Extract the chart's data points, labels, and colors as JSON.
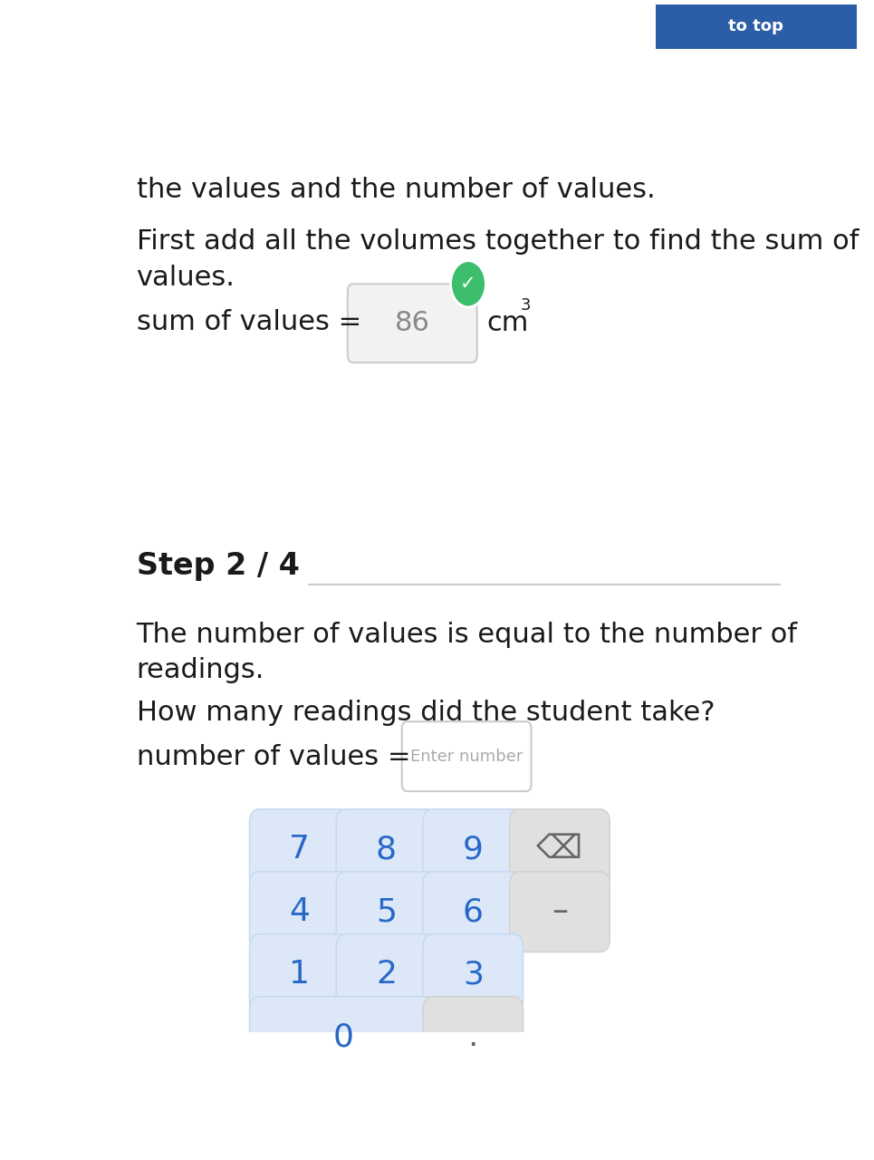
{
  "bg_color": "#ffffff",
  "text_color": "#1a1a1a",
  "line1": "the values and the number of values.",
  "line2": "First add all the volumes together to find the sum of",
  "line3": "values.",
  "sum_label": "sum of values =",
  "sum_value": "86",
  "step_label": "Step 2 / 4",
  "step_line_color": "#cccccc",
  "desc_line1": "The number of values is equal to the number of",
  "desc_line2": "readings.",
  "question": "How many readings did the student take?",
  "nv_label": "number of values =",
  "nv_placeholder": "Enter number",
  "input_box_color": "#f2f2f2",
  "input_border_color": "#cccccc",
  "placeholder_color": "#aaaaaa",
  "checkmark_color": "#3dbe6c",
  "button_color": "#dce8f8",
  "button_text_color": "#2968c8",
  "button_border_color": "#c5d8f0",
  "special_btn_color": "#e0e0e0",
  "special_btn_border": "#d0d0d0",
  "special_btn_text": "#666666",
  "toptag_color": "#2b5ea7",
  "toptag_text": "to top",
  "left_bar_color": "#2b5ea7",
  "font_size_main": 22,
  "font_size_step": 24,
  "font_size_btn": 26,
  "buttons": [
    {
      "label": "7",
      "col": 0,
      "row": 0,
      "wide": false,
      "special": false
    },
    {
      "label": "8",
      "col": 1,
      "row": 0,
      "wide": false,
      "special": false
    },
    {
      "label": "9",
      "col": 2,
      "row": 0,
      "wide": false,
      "special": false
    },
    {
      "label": "⌫",
      "col": 3,
      "row": 0,
      "wide": false,
      "special": true
    },
    {
      "label": "4",
      "col": 0,
      "row": 1,
      "wide": false,
      "special": false
    },
    {
      "label": "5",
      "col": 1,
      "row": 1,
      "wide": false,
      "special": false
    },
    {
      "label": "6",
      "col": 2,
      "row": 1,
      "wide": false,
      "special": false
    },
    {
      "label": "–",
      "col": 3,
      "row": 1,
      "wide": false,
      "special": true
    },
    {
      "label": "1",
      "col": 0,
      "row": 2,
      "wide": false,
      "special": false
    },
    {
      "label": "2",
      "col": 1,
      "row": 2,
      "wide": false,
      "special": false
    },
    {
      "label": "3",
      "col": 2,
      "row": 2,
      "wide": false,
      "special": false
    },
    {
      "label": "0",
      "col": 0,
      "row": 3,
      "wide": true,
      "special": false
    },
    {
      "label": ".",
      "col": 2,
      "row": 3,
      "wide": false,
      "special": true
    }
  ]
}
